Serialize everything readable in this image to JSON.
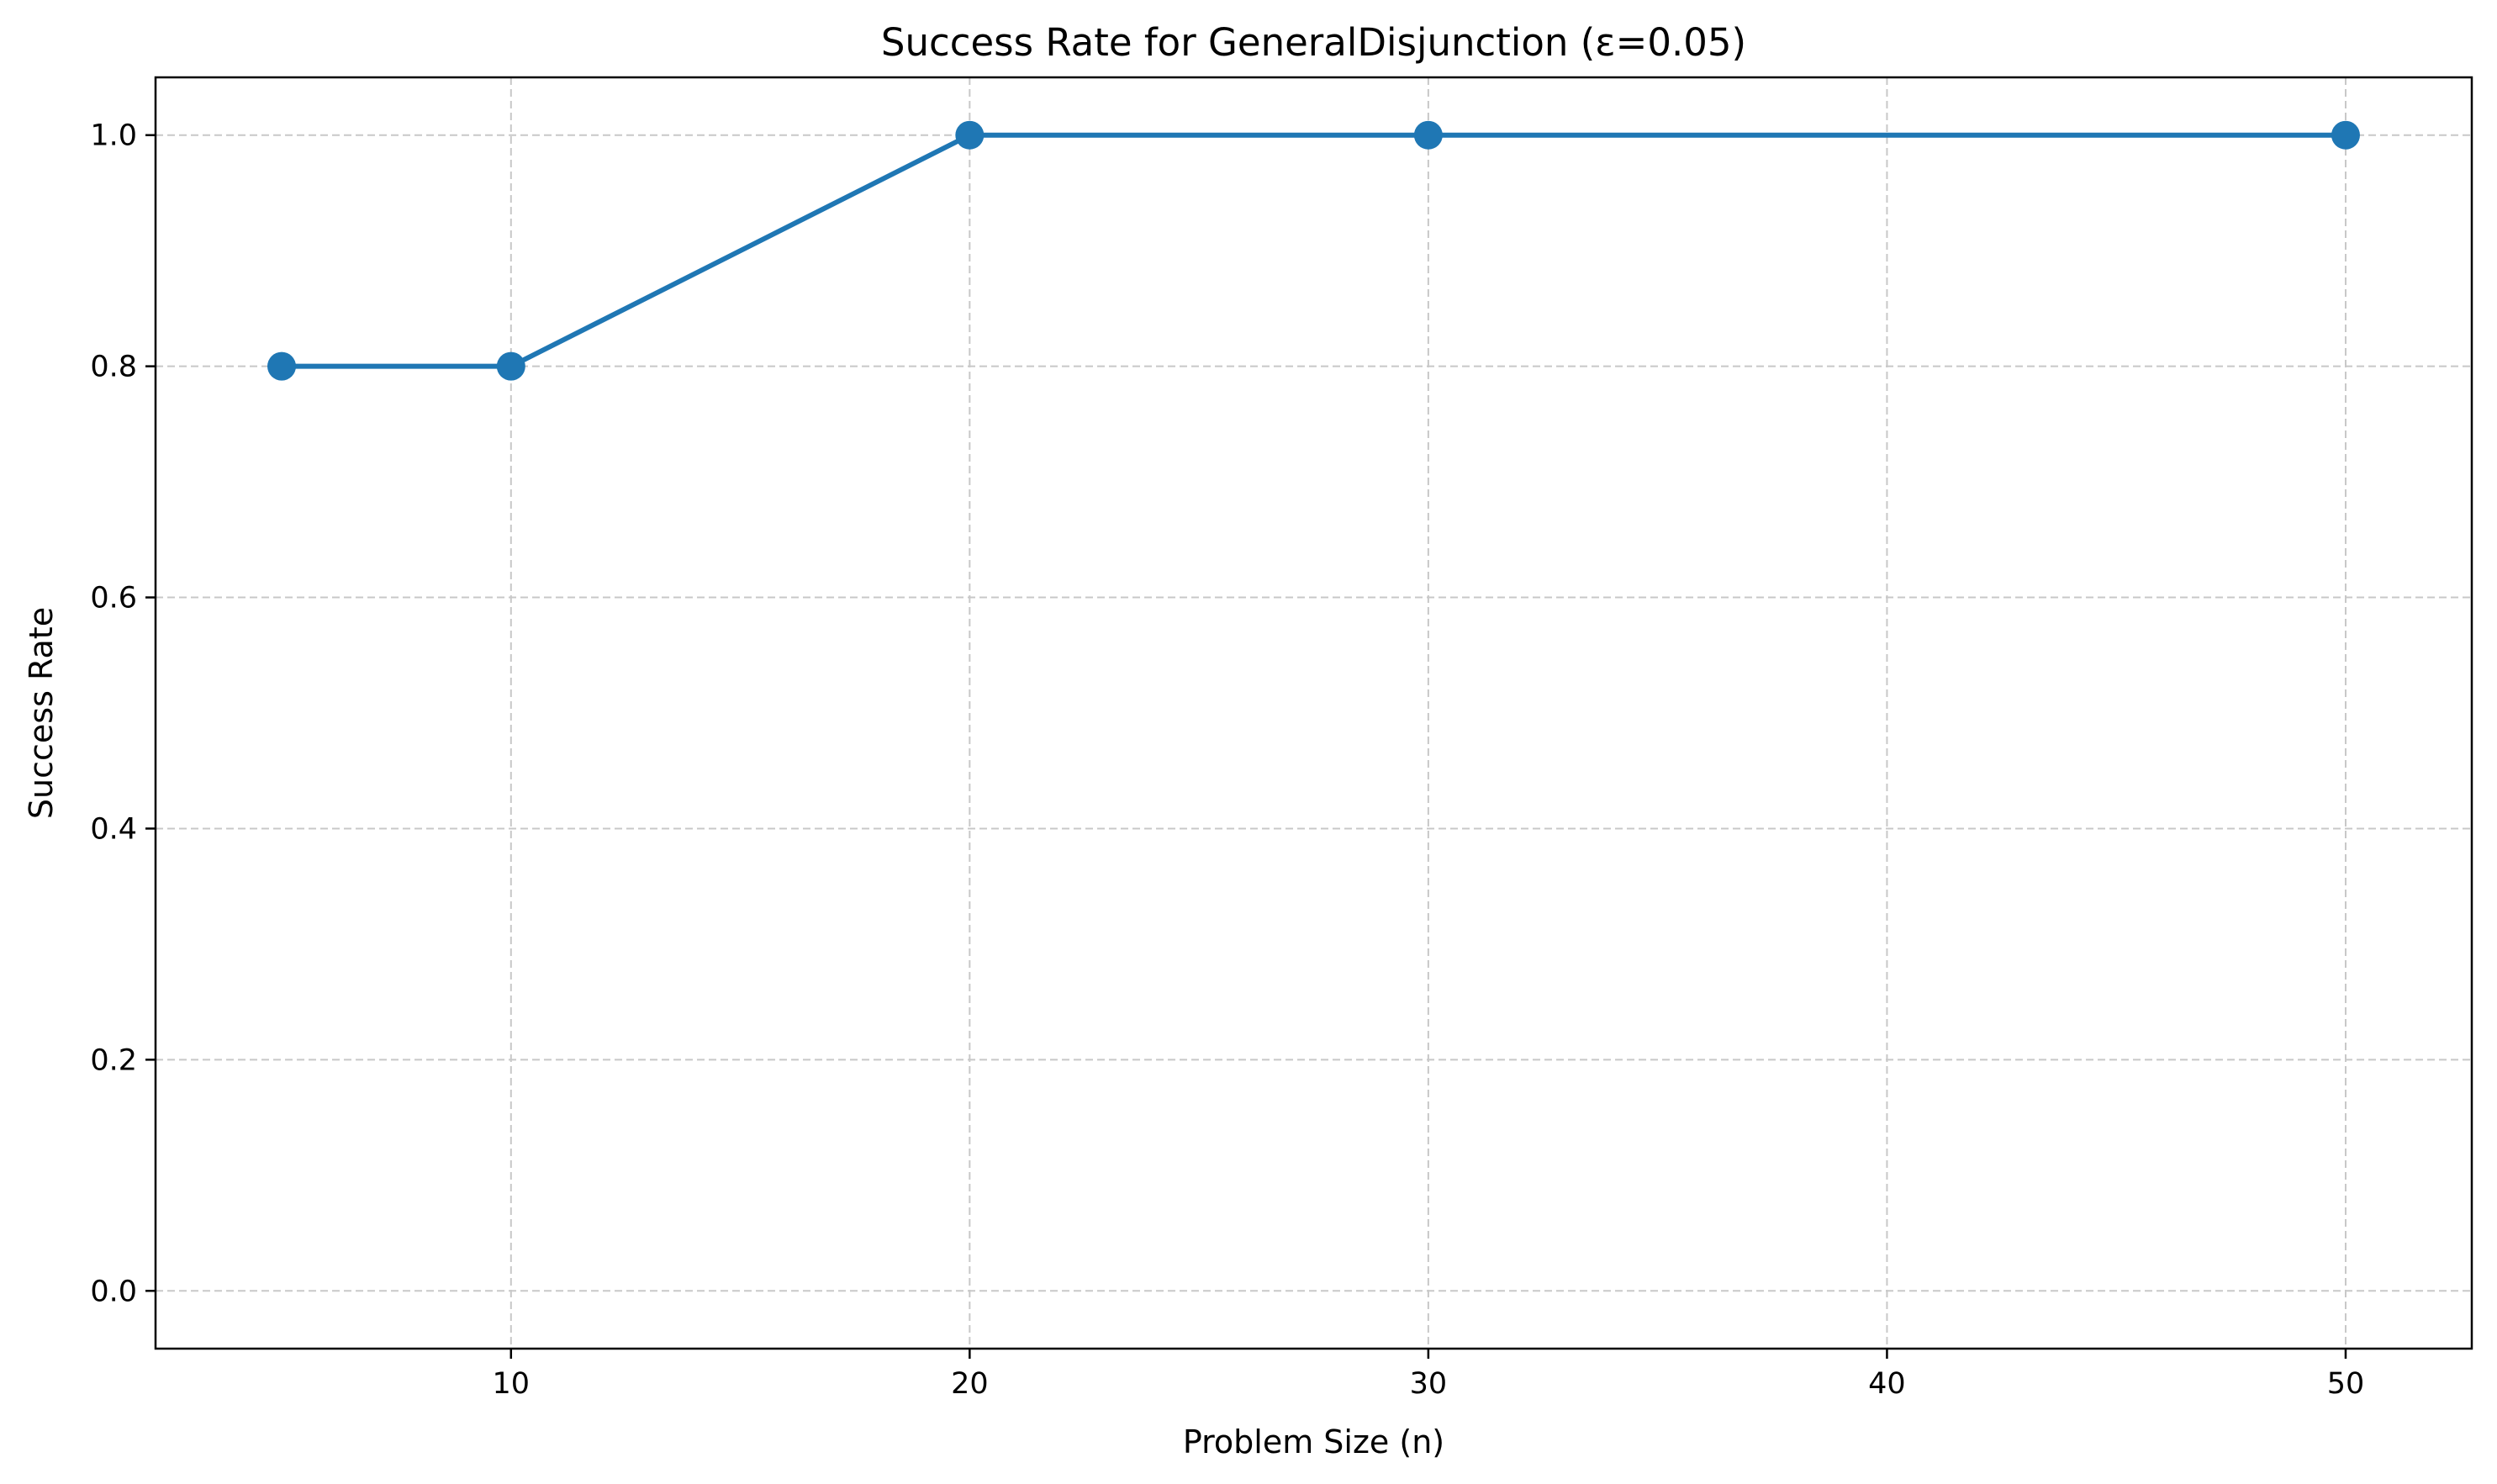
{
  "chart_data": {
    "type": "line",
    "title": "Success Rate for GeneralDisjunction (ε=0.05)",
    "xlabel": "Problem Size (n)",
    "ylabel": "Success Rate",
    "x": [
      5,
      10,
      20,
      30,
      50
    ],
    "series": [
      {
        "values": [
          0.8,
          0.8,
          1.0,
          1.0,
          1.0
        ],
        "color": "#1f77b4"
      }
    ],
    "xlim": [
      2.25,
      52.75
    ],
    "ylim": [
      -0.05,
      1.05
    ],
    "xticks": [
      10,
      20,
      30,
      40,
      50
    ],
    "xtick_labels": [
      "10",
      "20",
      "30",
      "40",
      "50"
    ],
    "yticks": [
      0.0,
      0.2,
      0.4,
      0.6,
      0.8,
      1.0
    ],
    "ytick_labels": [
      "0.0",
      "0.2",
      "0.4",
      "0.6",
      "0.8",
      "1.0"
    ],
    "grid": true,
    "grid_style": "dashed",
    "marker": "circle",
    "legend": null
  },
  "colors": {
    "line": "#1f77b4",
    "grid": "#c8c8c8",
    "axis": "#000000",
    "background": "#ffffff"
  }
}
